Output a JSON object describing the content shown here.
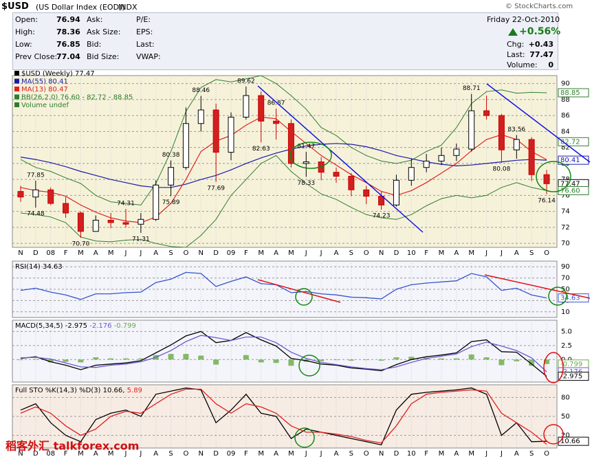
{
  "header": {
    "symbol": "$USD",
    "name": "(US Dollar Index (EOD))",
    "exchange": "INDX",
    "source": "© StockCharts.com"
  },
  "quote": {
    "left": [
      {
        "label": "Open:",
        "value": 76.94
      },
      {
        "label": "High:",
        "value": 78.36
      },
      {
        "label": "Low:",
        "value": 76.85
      },
      {
        "label": "Prev Close:",
        "value": 77.04
      }
    ],
    "middle": [
      "Ask:",
      "Ask Size:",
      "Bid:",
      "Bid Size:"
    ],
    "right_labels": [
      "P/E:",
      "EPS:",
      "Last:",
      "VWAP:"
    ],
    "date": "Friday  22-Oct-2010",
    "change_pct": {
      "value": 0.56,
      "label": "+0.56%"
    },
    "stats": [
      {
        "label": "Chg:",
        "value": {
          "value": 0.43,
          "label": "+0.43"
        }
      },
      {
        "label": "Last:",
        "value": 77.47
      },
      {
        "label": "Volume:",
        "value": 0
      }
    ]
  },
  "watermark": "稻客外汇 talkforex.com",
  "chart_data": [
    {
      "type": "candlestick",
      "background": "#f6f2da",
      "series_name": "$USD (Weekly) 77.47",
      "volume_label": "Volume undef",
      "categories": [
        "N",
        "D",
        "08",
        "F",
        "M",
        "A",
        "M",
        "J",
        "J",
        "A",
        "S",
        "O",
        "N",
        "D",
        "09",
        "F",
        "M",
        "A",
        "M",
        "J",
        "J",
        "A",
        "S",
        "O",
        "N",
        "D",
        "10",
        "F",
        "M",
        "A",
        "M",
        "J",
        "J",
        "A",
        "S",
        "O"
      ],
      "open": [
        76.5,
        75.8,
        76.7,
        75.0,
        73.8,
        71.5,
        72.9,
        72.6,
        72.4,
        73.0,
        77.3,
        79.5,
        85.0,
        86.7,
        81.4,
        85.8,
        88.5,
        85.3,
        85.0,
        80.0,
        80.2,
        78.9,
        78.4,
        76.7,
        75.9,
        74.8,
        77.9,
        79.5,
        80.3,
        81.0,
        81.8,
        86.6,
        86.0,
        81.7,
        83.0,
        78.6
      ],
      "high": [
        77.2,
        77.85,
        77.0,
        75.8,
        74.0,
        73.5,
        73.8,
        74.31,
        73.8,
        77.9,
        80.38,
        87.0,
        88.46,
        87.5,
        86.4,
        89.62,
        89.0,
        86.87,
        85.5,
        81.47,
        80.8,
        79.5,
        78.8,
        77.2,
        76.5,
        78.6,
        80.6,
        81.2,
        82.0,
        82.5,
        88.71,
        88.5,
        86.2,
        83.56,
        83.3,
        79.2
      ],
      "low": [
        75.2,
        74.48,
        74.8,
        73.2,
        70.7,
        71.6,
        71.9,
        72.0,
        71.31,
        72.8,
        75.89,
        79.2,
        84.0,
        77.69,
        80.4,
        85.5,
        82.63,
        83.0,
        79.5,
        78.33,
        77.9,
        77.6,
        75.9,
        74.9,
        74.23,
        74.6,
        77.2,
        78.9,
        79.8,
        80.3,
        81.5,
        85.5,
        80.08,
        80.6,
        77.8,
        76.14
      ],
      "close": [
        75.8,
        76.7,
        75.0,
        73.8,
        71.5,
        72.9,
        72.6,
        72.4,
        73.0,
        77.3,
        79.5,
        85.0,
        86.7,
        81.4,
        85.8,
        88.5,
        85.3,
        85.0,
        80.0,
        80.2,
        78.9,
        78.4,
        76.7,
        75.9,
        74.8,
        77.9,
        79.5,
        80.3,
        81.0,
        81.8,
        86.6,
        86.0,
        81.7,
        83.0,
        78.6,
        77.47
      ],
      "high_labels": [
        null,
        "77.85",
        null,
        null,
        null,
        null,
        null,
        "74.31",
        null,
        null,
        "80.38",
        null,
        "88.46",
        null,
        null,
        "89.62",
        null,
        "86.87",
        null,
        "81.47",
        null,
        null,
        null,
        null,
        null,
        null,
        null,
        null,
        null,
        null,
        "88.71",
        null,
        null,
        "83.56",
        null,
        null
      ],
      "low_labels": [
        null,
        "74.48",
        null,
        null,
        "70.70",
        null,
        null,
        null,
        "71.31",
        null,
        "75.89",
        null,
        null,
        "77.69",
        null,
        null,
        "82.63",
        null,
        null,
        "78.33",
        null,
        null,
        null,
        null,
        "74.23",
        null,
        null,
        null,
        null,
        null,
        null,
        null,
        "80.08",
        null,
        null,
        "76.14"
      ],
      "overlays": [
        {
          "name": "MA(55) 80.41",
          "color": "#1a1aa8",
          "values": [
            80.8,
            80.5,
            80.1,
            79.6,
            79.0,
            78.5,
            78.0,
            77.6,
            77.2,
            77.0,
            77.0,
            77.4,
            78.0,
            78.5,
            79.2,
            80.0,
            80.7,
            81.3,
            81.8,
            82.2,
            82.4,
            82.5,
            82.4,
            82.1,
            81.6,
            81.0,
            80.6,
            80.2,
            79.9,
            79.7,
            79.8,
            80.0,
            80.2,
            80.4,
            80.5,
            80.41
          ]
        },
        {
          "name": "MA(13) 80.47",
          "color": "#e02020",
          "values": [
            77.0,
            76.6,
            76.4,
            75.9,
            74.8,
            73.9,
            73.2,
            72.8,
            72.6,
            73.3,
            75.0,
            78.0,
            81.5,
            82.8,
            83.5,
            84.8,
            85.8,
            85.6,
            84.0,
            82.5,
            81.0,
            79.8,
            78.6,
            77.6,
            76.5,
            76.0,
            76.6,
            77.6,
            78.8,
            80.0,
            81.6,
            83.0,
            83.6,
            83.0,
            81.5,
            80.47
          ]
        }
      ],
      "bands": {
        "name": "BB(26,2.0) 76.60 - 82.72 - 88.85",
        "color": "#2e7d2e",
        "upper": [
          80.5,
          79.5,
          79.0,
          78.2,
          77.5,
          76.0,
          75.2,
          75.0,
          74.8,
          77.5,
          81.5,
          86.5,
          89.5,
          90.5,
          90.2,
          90.6,
          91.0,
          90.0,
          88.5,
          86.8,
          84.5,
          83.5,
          82.0,
          81.0,
          80.3,
          80.0,
          80.4,
          81.5,
          82.3,
          84.5,
          87.5,
          89.0,
          89.2,
          88.8,
          88.9,
          88.85
        ],
        "lower": [
          73.8,
          73.6,
          73.3,
          72.6,
          70.8,
          70.3,
          70.2,
          70.4,
          70.5,
          70.0,
          69.6,
          69.5,
          71.0,
          73.0,
          76.0,
          78.0,
          80.0,
          81.0,
          79.0,
          77.5,
          76.2,
          75.5,
          74.5,
          73.6,
          73.2,
          73.0,
          73.6,
          74.7,
          75.6,
          76.0,
          75.7,
          76.0,
          77.0,
          77.6,
          77.0,
          76.6
        ]
      },
      "ylim": [
        69.5,
        91
      ],
      "yticks": [
        70,
        72,
        74,
        76,
        78,
        80,
        82,
        84,
        86,
        88,
        90
      ],
      "tags": [
        {
          "value": 88.85,
          "color": "#2e7d2e"
        },
        {
          "value": 82.72,
          "color": "#2e7d2e"
        },
        {
          "value": 80.41,
          "color": "#1a1aa8"
        },
        {
          "value": 77.47,
          "color": "#000000"
        },
        {
          "value": 76.6,
          "label": "76.60",
          "color": "#2e7d2e"
        }
      ]
    },
    {
      "type": "line",
      "background": "#f4f4fb",
      "title": "RSI(14) 34.63",
      "series": [
        {
          "color": "#3355cc",
          "values": [
            48,
            52,
            45,
            40,
            32,
            42,
            42,
            44,
            45,
            62,
            68,
            80,
            78,
            55,
            64,
            72,
            60,
            58,
            44,
            46,
            42,
            40,
            36,
            35,
            33,
            50,
            58,
            61,
            63,
            65,
            78,
            72,
            48,
            52,
            40,
            34.63
          ]
        }
      ],
      "ylim": [
        0,
        100
      ],
      "yticks": [
        10,
        30,
        50,
        70,
        90
      ],
      "tags": [
        {
          "value": 34.63,
          "color": "#3355cc"
        }
      ]
    },
    {
      "type": "line",
      "background": "#f4f4fb",
      "title": "MACD(5,34,5)",
      "series": [
        {
          "name": "-2.975",
          "color": "#000000",
          "values": [
            0.2,
            0.5,
            -0.4,
            -1.0,
            -1.8,
            -1.0,
            -0.8,
            -0.6,
            -0.2,
            1.2,
            2.6,
            4.2,
            5.0,
            3.0,
            3.4,
            4.8,
            3.5,
            2.4,
            0.2,
            -0.2,
            -0.8,
            -1.0,
            -1.5,
            -1.7,
            -2.0,
            -0.9,
            0.0,
            0.5,
            0.8,
            1.2,
            3.2,
            3.5,
            1.4,
            1.3,
            -0.8,
            -2.975
          ]
        },
        {
          "name": "-2.176",
          "color": "#6a5acd",
          "values": [
            0.3,
            0.4,
            0.1,
            -0.6,
            -1.3,
            -1.4,
            -1.0,
            -0.8,
            -0.4,
            0.4,
            1.6,
            3.2,
            4.3,
            3.9,
            3.4,
            4.0,
            4.0,
            3.0,
            1.3,
            0.2,
            -0.5,
            -0.9,
            -1.3,
            -1.6,
            -1.8,
            -1.3,
            -0.5,
            0.2,
            0.6,
            1.0,
            2.3,
            3.1,
            2.4,
            1.6,
            0.3,
            -2.176
          ]
        },
        {
          "name": "-0.799",
          "color": "#66aa44",
          "style": "bar",
          "values": [
            -0.1,
            0.1,
            -0.5,
            -0.4,
            -0.5,
            0.4,
            0.2,
            0.2,
            0.2,
            0.8,
            1.0,
            1.0,
            0.7,
            -0.9,
            0.0,
            0.8,
            -0.5,
            -0.6,
            -1.1,
            -0.4,
            -0.3,
            -0.1,
            -0.2,
            -0.1,
            -0.2,
            0.4,
            0.5,
            0.3,
            0.2,
            0.2,
            0.9,
            0.4,
            -1.0,
            -0.3,
            -1.1,
            -0.799
          ]
        }
      ],
      "ylim": [
        -4,
        7
      ],
      "yticks": [
        {
          "value": 0,
          "label": "0.0"
        },
        {
          "value": 2.5,
          "label": "2.5"
        },
        {
          "value": 5,
          "label": "5.0"
        }
      ],
      "tags": [
        {
          "value": -0.799,
          "color": "#66aa44"
        },
        {
          "value": -2.176,
          "color": "#6a5acd"
        },
        {
          "value": -2.975,
          "color": "#000000"
        }
      ]
    },
    {
      "type": "line",
      "background": "#f7ece4",
      "title": "Full STO %K(14,3) %D(3)",
      "show_x_labels": true,
      "categories": [
        "N",
        "D",
        "08",
        "F",
        "M",
        "A",
        "M",
        "J",
        "J",
        "A",
        "S",
        "O",
        "N",
        "D",
        "09",
        "F",
        "M",
        "A",
        "M",
        "J",
        "J",
        "A",
        "S",
        "O",
        "N",
        "D",
        "10",
        "F",
        "M",
        "A",
        "M",
        "J",
        "J",
        "A",
        "S",
        "O"
      ],
      "series": [
        {
          "name": "10.66,",
          "color": "#000000",
          "values": [
            60,
            70,
            40,
            20,
            10,
            45,
            55,
            60,
            50,
            85,
            90,
            95,
            92,
            40,
            60,
            85,
            55,
            50,
            15,
            30,
            25,
            20,
            15,
            10,
            5,
            60,
            85,
            88,
            90,
            92,
            95,
            85,
            20,
            40,
            10,
            10.66
          ]
        },
        {
          "name": "5.89",
          "color": "#e02020",
          "values": [
            55,
            65,
            55,
            35,
            20,
            30,
            50,
            58,
            55,
            70,
            85,
            93,
            93,
            70,
            55,
            70,
            65,
            55,
            35,
            25,
            25,
            22,
            18,
            12,
            8,
            35,
            70,
            85,
            88,
            90,
            92,
            90,
            55,
            40,
            25,
            5.89
          ]
        }
      ],
      "ylim": [
        0,
        100
      ],
      "yticks": [
        20,
        50,
        80
      ],
      "tags": [
        {
          "value": 10.66,
          "color": "#000000"
        }
      ]
    }
  ]
}
